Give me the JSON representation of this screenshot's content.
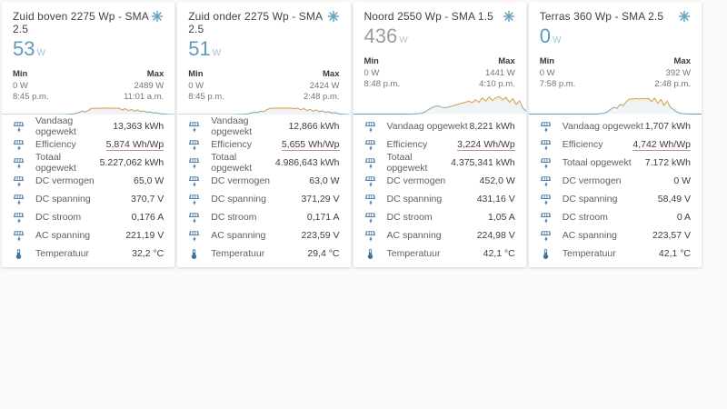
{
  "theme": {
    "page_bg": "#fafafa",
    "card_bg": "#ffffff",
    "accent_blue": "#5d9bc0",
    "state_grey": "#9a9f99",
    "row_icon_color": "#44739e",
    "line_color_high": "#d9a43f",
    "line_color_low": "#64a0c4",
    "efficiency_underline": "#cc8b7d"
  },
  "cards": [
    {
      "title": "Zuid boven 2275 Wp - SMA 2.5",
      "state": "53",
      "unit": "W",
      "state_color": "blue",
      "min": {
        "label": "Min",
        "value": "0 W",
        "time": "8:45 p.m."
      },
      "max": {
        "label": "Max",
        "value": "2489 W",
        "time": "11:01 a.m."
      },
      "rows": [
        {
          "icon": "solar-power",
          "label": "Vandaag opgewekt",
          "value": "13,363 kWh",
          "underline": false
        },
        {
          "icon": "solar-power",
          "label": "Efficiency",
          "value": "5,874 Wh/Wp",
          "underline": true
        },
        {
          "icon": "solar-power",
          "label": "Totaal opgewekt",
          "value": "5.227,062 kWh",
          "underline": false
        },
        {
          "icon": "solar-power",
          "label": "DC vermogen",
          "value": "65,0 W",
          "underline": false
        },
        {
          "icon": "solar-power",
          "label": "DC spanning",
          "value": "370,7 V",
          "underline": false
        },
        {
          "icon": "solar-power",
          "label": "DC stroom",
          "value": "0,176 A",
          "underline": false
        },
        {
          "icon": "solar-power",
          "label": "AC spanning",
          "value": "221,19 V",
          "underline": false
        },
        {
          "icon": "thermometer",
          "label": "Temperatuur",
          "value": "32,2 °C",
          "underline": false
        }
      ]
    },
    {
      "title": "Zuid onder 2275 Wp - SMA 2.5",
      "state": "51",
      "unit": "W",
      "state_color": "blue",
      "min": {
        "label": "Min",
        "value": "0 W",
        "time": "8:45 p.m."
      },
      "max": {
        "label": "Max",
        "value": "2424 W",
        "time": "2:48 p.m."
      },
      "rows": [
        {
          "icon": "solar-power",
          "label": "Vandaag opgewekt",
          "value": "12,866 kWh",
          "underline": false
        },
        {
          "icon": "solar-power",
          "label": "Efficiency",
          "value": "5,655 Wh/Wp",
          "underline": true
        },
        {
          "icon": "solar-power",
          "label": "Totaal opgewekt",
          "value": "4.986,643 kWh",
          "underline": false
        },
        {
          "icon": "solar-power",
          "label": "DC vermogen",
          "value": "63,0 W",
          "underline": false
        },
        {
          "icon": "solar-power",
          "label": "DC spanning",
          "value": "371,29 V",
          "underline": false
        },
        {
          "icon": "solar-power",
          "label": "DC stroom",
          "value": "0,171 A",
          "underline": false
        },
        {
          "icon": "solar-power",
          "label": "AC spanning",
          "value": "223,59 V",
          "underline": false
        },
        {
          "icon": "thermometer",
          "label": "Temperatuur",
          "value": "29,4 °C",
          "underline": false
        }
      ]
    },
    {
      "title": "Noord 2550 Wp - SMA 1.5",
      "state": "436",
      "unit": "W",
      "state_color": "grey",
      "min": {
        "label": "Min",
        "value": "0 W",
        "time": "8:48 p.m."
      },
      "max": {
        "label": "Max",
        "value": "1441 W",
        "time": "4:10 p.m."
      },
      "rows": [
        {
          "icon": "solar-power",
          "label": "Vandaag opgewekt",
          "value": "8,221 kWh",
          "underline": false
        },
        {
          "icon": "solar-power",
          "label": "Efficiency",
          "value": "3,224 Wh/Wp",
          "underline": true
        },
        {
          "icon": "solar-power",
          "label": "Totaal opgewekt",
          "value": "4.375,341 kWh",
          "underline": false
        },
        {
          "icon": "solar-power",
          "label": "DC vermogen",
          "value": "452,0 W",
          "underline": false
        },
        {
          "icon": "solar-power",
          "label": "DC spanning",
          "value": "431,16 V",
          "underline": false
        },
        {
          "icon": "solar-power",
          "label": "DC stroom",
          "value": "1,05 A",
          "underline": false
        },
        {
          "icon": "solar-power",
          "label": "AC spanning",
          "value": "224,98 V",
          "underline": false
        },
        {
          "icon": "thermometer",
          "label": "Temperatuur",
          "value": "42,1 °C",
          "underline": false
        }
      ]
    },
    {
      "title": "Terras 360 Wp - SMA 2.5",
      "state": "0",
      "unit": "W",
      "state_color": "blue",
      "min": {
        "label": "Min",
        "value": "0 W",
        "time": "7:58 p.m."
      },
      "max": {
        "label": "Max",
        "value": "392 W",
        "time": "2:48 p.m."
      },
      "rows": [
        {
          "icon": "solar-power",
          "label": "Vandaag opgewekt",
          "value": "1,707 kWh",
          "underline": false
        },
        {
          "icon": "solar-power",
          "label": "Efficiency",
          "value": "4,742 Wh/Wp",
          "underline": true
        },
        {
          "icon": "solar-power",
          "label": "Totaal opgewekt",
          "value": "7.172 kWh",
          "underline": false
        },
        {
          "icon": "solar-power",
          "label": "DC vermogen",
          "value": "0 W",
          "underline": false
        },
        {
          "icon": "solar-power",
          "label": "DC spanning",
          "value": "58,49 V",
          "underline": false
        },
        {
          "icon": "solar-power",
          "label": "DC stroom",
          "value": "0 A",
          "underline": false
        },
        {
          "icon": "solar-power",
          "label": "AC spanning",
          "value": "223,57 V",
          "underline": false
        },
        {
          "icon": "thermometer",
          "label": "Temperatuur",
          "value": "42,1 °C",
          "underline": false
        }
      ]
    }
  ],
  "chart_data": [
    {
      "type": "area",
      "title": "Zuid boven 2275 Wp power history (day)",
      "ylim_w": [
        0,
        2489
      ],
      "values_normalized": [
        0,
        0,
        0,
        0,
        0,
        0,
        0,
        0,
        0,
        0,
        0,
        0,
        0,
        0,
        0,
        0,
        0,
        0,
        0,
        0,
        0.01,
        0.02,
        0.04,
        0.08,
        0.15,
        0.28,
        0.45,
        0.35,
        0.55,
        0.8,
        0.83,
        0.82,
        0.84,
        0.83,
        0.84,
        0.83,
        0.84,
        0.82,
        0.83,
        0.6,
        0.78,
        0.5,
        0.68,
        0.45,
        0.6,
        0.4,
        0.48,
        0.3,
        0.36,
        0.22,
        0.25,
        0.15,
        0.1,
        0.05,
        0.02,
        0.01,
        0
      ]
    },
    {
      "type": "area",
      "title": "Zuid onder 2275 Wp power history (day)",
      "ylim_w": [
        0,
        2424
      ],
      "values_normalized": [
        0,
        0,
        0,
        0,
        0,
        0,
        0,
        0,
        0,
        0,
        0,
        0,
        0,
        0,
        0,
        0,
        0,
        0,
        0,
        0.01,
        0.02,
        0.03,
        0.06,
        0.12,
        0.22,
        0.3,
        0.26,
        0.45,
        0.38,
        0.62,
        0.82,
        0.84,
        0.83,
        0.85,
        0.83,
        0.84,
        0.85,
        0.83,
        0.78,
        0.85,
        0.62,
        0.8,
        0.52,
        0.7,
        0.45,
        0.62,
        0.38,
        0.5,
        0.3,
        0.38,
        0.22,
        0.26,
        0.14,
        0.08,
        0.04,
        0.01,
        0
      ]
    },
    {
      "type": "area",
      "title": "Noord 2550 Wp power history (day)",
      "ylim_w": [
        0,
        1441
      ],
      "values_normalized": [
        0,
        0,
        0,
        0,
        0,
        0,
        0,
        0,
        0,
        0,
        0,
        0,
        0,
        0,
        0,
        0,
        0,
        0,
        0.01,
        0.02,
        0.04,
        0.1,
        0.22,
        0.33,
        0.4,
        0.43,
        0.36,
        0.33,
        0.37,
        0.42,
        0.47,
        0.52,
        0.57,
        0.62,
        0.68,
        0.6,
        0.75,
        0.62,
        0.85,
        0.68,
        0.9,
        0.72,
        0.86,
        0.92,
        0.75,
        0.88,
        0.62,
        0.82,
        0.5,
        0.7,
        0.3,
        0.15
      ]
    },
    {
      "type": "area",
      "title": "Terras 360 Wp power history (day)",
      "ylim_w": [
        0,
        392
      ],
      "values_normalized": [
        0,
        0,
        0,
        0,
        0,
        0,
        0,
        0,
        0,
        0,
        0,
        0,
        0,
        0,
        0,
        0,
        0,
        0,
        0,
        0,
        0,
        0,
        0.01,
        0.02,
        0.05,
        0.12,
        0.25,
        0.35,
        0.3,
        0.5,
        0.44,
        0.65,
        0.8,
        0.78,
        0.82,
        0.79,
        0.83,
        0.8,
        0.82,
        0.66,
        0.84,
        0.56,
        0.78,
        0.46,
        0.68,
        0.35,
        0.25,
        0.12,
        0.05,
        0.02,
        0.01,
        0,
        0,
        0,
        0,
        0
      ]
    }
  ]
}
